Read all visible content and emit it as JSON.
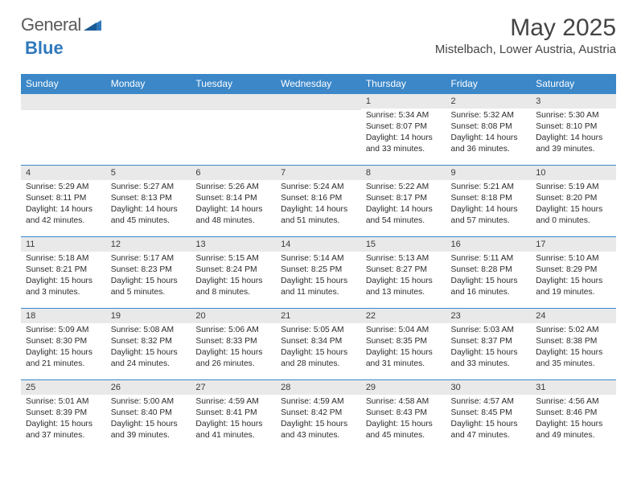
{
  "logo": {
    "word1": "General",
    "word2": "Blue"
  },
  "title": "May 2025",
  "location": "Mistelbach, Lower Austria, Austria",
  "colors": {
    "header_bg": "#3b87c8",
    "header_text": "#ffffff",
    "daynum_bg": "#e9e9e9",
    "border": "#3b87c8",
    "logo_gray": "#5a5a5a",
    "logo_blue": "#2f78bc"
  },
  "weekdays": [
    "Sunday",
    "Monday",
    "Tuesday",
    "Wednesday",
    "Thursday",
    "Friday",
    "Saturday"
  ],
  "weeks": [
    [
      null,
      null,
      null,
      null,
      {
        "n": "1",
        "sr": "5:34 AM",
        "ss": "8:07 PM",
        "dl": "14 hours and 33 minutes."
      },
      {
        "n": "2",
        "sr": "5:32 AM",
        "ss": "8:08 PM",
        "dl": "14 hours and 36 minutes."
      },
      {
        "n": "3",
        "sr": "5:30 AM",
        "ss": "8:10 PM",
        "dl": "14 hours and 39 minutes."
      }
    ],
    [
      {
        "n": "4",
        "sr": "5:29 AM",
        "ss": "8:11 PM",
        "dl": "14 hours and 42 minutes."
      },
      {
        "n": "5",
        "sr": "5:27 AM",
        "ss": "8:13 PM",
        "dl": "14 hours and 45 minutes."
      },
      {
        "n": "6",
        "sr": "5:26 AM",
        "ss": "8:14 PM",
        "dl": "14 hours and 48 minutes."
      },
      {
        "n": "7",
        "sr": "5:24 AM",
        "ss": "8:16 PM",
        "dl": "14 hours and 51 minutes."
      },
      {
        "n": "8",
        "sr": "5:22 AM",
        "ss": "8:17 PM",
        "dl": "14 hours and 54 minutes."
      },
      {
        "n": "9",
        "sr": "5:21 AM",
        "ss": "8:18 PM",
        "dl": "14 hours and 57 minutes."
      },
      {
        "n": "10",
        "sr": "5:19 AM",
        "ss": "8:20 PM",
        "dl": "15 hours and 0 minutes."
      }
    ],
    [
      {
        "n": "11",
        "sr": "5:18 AM",
        "ss": "8:21 PM",
        "dl": "15 hours and 3 minutes."
      },
      {
        "n": "12",
        "sr": "5:17 AM",
        "ss": "8:23 PM",
        "dl": "15 hours and 5 minutes."
      },
      {
        "n": "13",
        "sr": "5:15 AM",
        "ss": "8:24 PM",
        "dl": "15 hours and 8 minutes."
      },
      {
        "n": "14",
        "sr": "5:14 AM",
        "ss": "8:25 PM",
        "dl": "15 hours and 11 minutes."
      },
      {
        "n": "15",
        "sr": "5:13 AM",
        "ss": "8:27 PM",
        "dl": "15 hours and 13 minutes."
      },
      {
        "n": "16",
        "sr": "5:11 AM",
        "ss": "8:28 PM",
        "dl": "15 hours and 16 minutes."
      },
      {
        "n": "17",
        "sr": "5:10 AM",
        "ss": "8:29 PM",
        "dl": "15 hours and 19 minutes."
      }
    ],
    [
      {
        "n": "18",
        "sr": "5:09 AM",
        "ss": "8:30 PM",
        "dl": "15 hours and 21 minutes."
      },
      {
        "n": "19",
        "sr": "5:08 AM",
        "ss": "8:32 PM",
        "dl": "15 hours and 24 minutes."
      },
      {
        "n": "20",
        "sr": "5:06 AM",
        "ss": "8:33 PM",
        "dl": "15 hours and 26 minutes."
      },
      {
        "n": "21",
        "sr": "5:05 AM",
        "ss": "8:34 PM",
        "dl": "15 hours and 28 minutes."
      },
      {
        "n": "22",
        "sr": "5:04 AM",
        "ss": "8:35 PM",
        "dl": "15 hours and 31 minutes."
      },
      {
        "n": "23",
        "sr": "5:03 AM",
        "ss": "8:37 PM",
        "dl": "15 hours and 33 minutes."
      },
      {
        "n": "24",
        "sr": "5:02 AM",
        "ss": "8:38 PM",
        "dl": "15 hours and 35 minutes."
      }
    ],
    [
      {
        "n": "25",
        "sr": "5:01 AM",
        "ss": "8:39 PM",
        "dl": "15 hours and 37 minutes."
      },
      {
        "n": "26",
        "sr": "5:00 AM",
        "ss": "8:40 PM",
        "dl": "15 hours and 39 minutes."
      },
      {
        "n": "27",
        "sr": "4:59 AM",
        "ss": "8:41 PM",
        "dl": "15 hours and 41 minutes."
      },
      {
        "n": "28",
        "sr": "4:59 AM",
        "ss": "8:42 PM",
        "dl": "15 hours and 43 minutes."
      },
      {
        "n": "29",
        "sr": "4:58 AM",
        "ss": "8:43 PM",
        "dl": "15 hours and 45 minutes."
      },
      {
        "n": "30",
        "sr": "4:57 AM",
        "ss": "8:45 PM",
        "dl": "15 hours and 47 minutes."
      },
      {
        "n": "31",
        "sr": "4:56 AM",
        "ss": "8:46 PM",
        "dl": "15 hours and 49 minutes."
      }
    ]
  ],
  "labels": {
    "sunrise": "Sunrise: ",
    "sunset": "Sunset: ",
    "daylight": "Daylight: "
  }
}
